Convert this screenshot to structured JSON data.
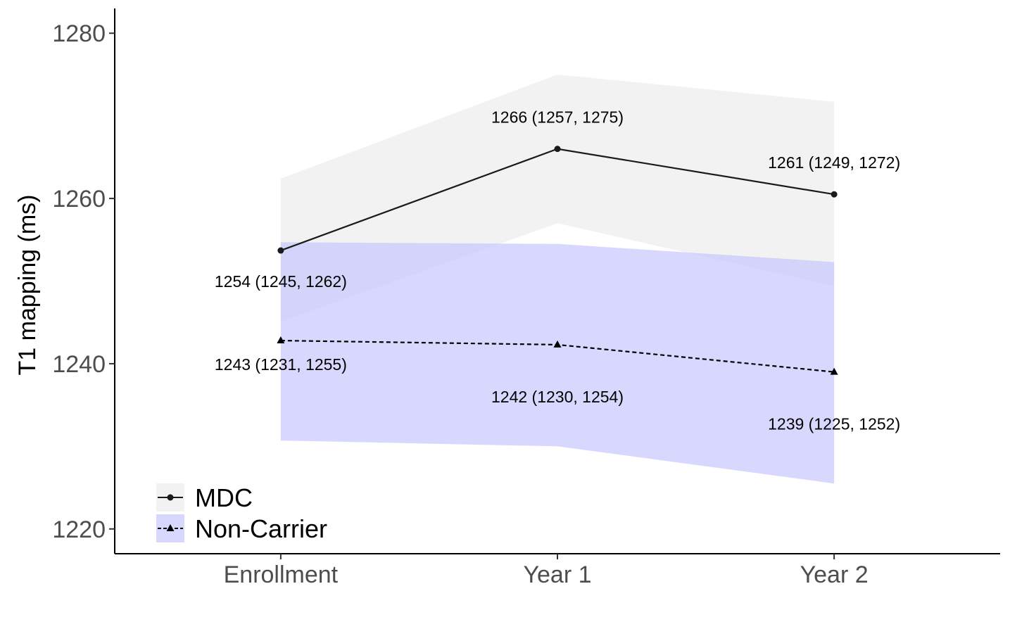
{
  "chart_data": {
    "type": "line",
    "title": "",
    "xlabel": "",
    "ylabel": "T1 mapping (ms)",
    "categories": [
      "Enrollment",
      "Year 1",
      "Year 2"
    ],
    "ylim": [
      1217,
      1283
    ],
    "yticks": [
      1220,
      1240,
      1260,
      1280
    ],
    "ytick_labels": [
      "1220",
      "1240",
      "1260",
      "1280"
    ],
    "grid": false,
    "legend": {
      "placement": "bottom-left"
    },
    "series": [
      {
        "name": "MDC",
        "values": [
          1253.7,
          1266.0,
          1260.5
        ],
        "lower": [
          1245.1,
          1257.0,
          1249.4
        ],
        "upper": [
          1262.4,
          1275.0,
          1271.7
        ],
        "labels": [
          "1254 (1245, 1262)",
          "1266 (1257, 1275)",
          "1261 (1249, 1272)"
        ],
        "line_color": "#1a1a1a",
        "band_color": "#f2f2f2",
        "marker": "circle",
        "dash": "solid"
      },
      {
        "name": "Non-Carrier",
        "values": [
          1242.8,
          1242.3,
          1239.0
        ],
        "lower": [
          1230.7,
          1230.0,
          1225.5
        ],
        "upper": [
          1254.7,
          1254.5,
          1252.3
        ],
        "labels": [
          "1243 (1231, 1255)",
          "1242 (1230, 1254)",
          "1239 (1225, 1252)"
        ],
        "line_color": "#000000",
        "band_color": "#c8c8ff",
        "marker": "triangle",
        "dash": "dashed"
      }
    ]
  }
}
